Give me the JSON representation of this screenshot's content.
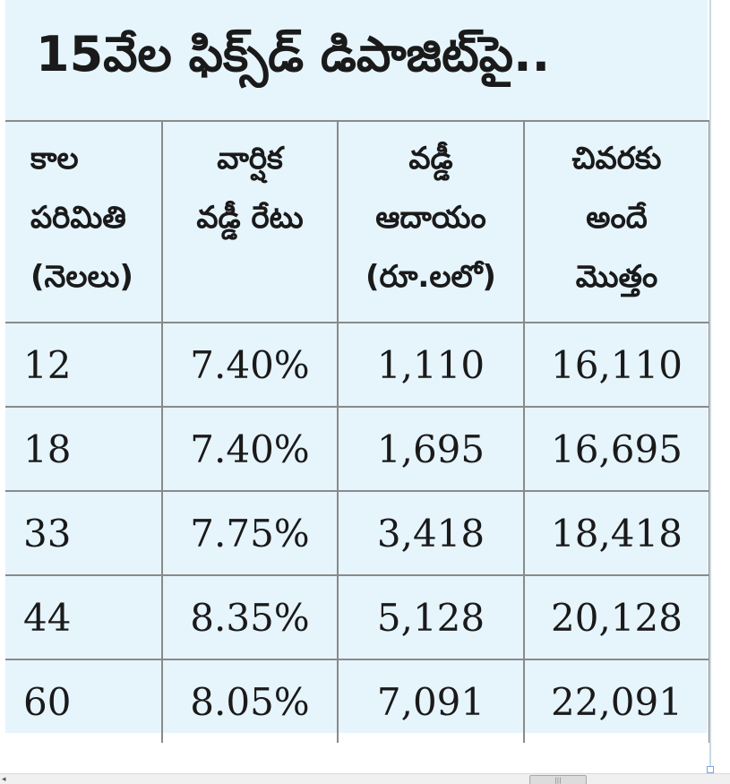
{
  "title": "15వేల ఫిక్స్‌డ్ డిపాజిట్‌పై..",
  "table": {
    "headers": [
      [
        "కాల",
        "పరిమితి",
        "(నెలలు)"
      ],
      [
        "వార్షిక",
        "వడ్డీ రేటు"
      ],
      [
        "వడ్డీ",
        "ఆదాయం",
        "(రూ.లలో)"
      ],
      [
        "చివరకు",
        "అందే",
        "మొత్తం"
      ]
    ],
    "rows": [
      [
        "12",
        "7.40%",
        "1,110",
        "16,110"
      ],
      [
        "18",
        "7.40%",
        "1,695",
        "16,695"
      ],
      [
        "33",
        "7.75%",
        "3,418",
        "18,418"
      ],
      [
        "44",
        "8.35%",
        "5,128",
        "20,128"
      ],
      [
        "60",
        "8.05%",
        "7,091",
        "22,091"
      ]
    ]
  },
  "scrollbar": {
    "left_arrow": "◂",
    "thumb_grip": "|||"
  },
  "colors": {
    "panel_background": "#e6f4fc",
    "grid_line": "#8a8a8a",
    "text": "#1a1a1a"
  }
}
